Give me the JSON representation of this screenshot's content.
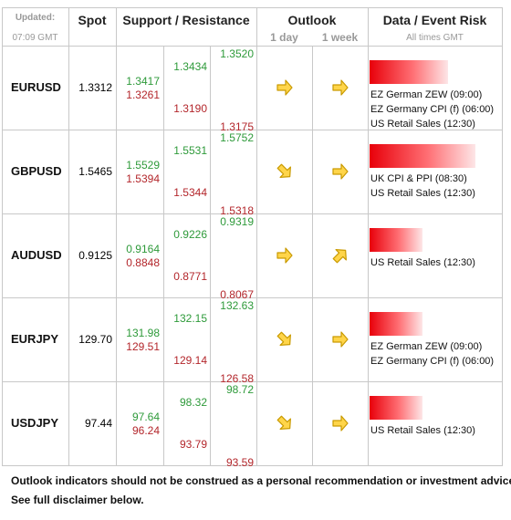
{
  "header": {
    "updated": "Updated:",
    "time": "07:09 GMT",
    "spot": "Spot",
    "support_resistance": "Support / Resistance",
    "outlook": "Outlook",
    "day": "1 day",
    "week": "1 week",
    "data": "Data / Event Risk",
    "times": "All times GMT"
  },
  "rows": [
    {
      "pair": "EURUSD",
      "spot": "1.3312",
      "levels": [
        [
          "1.3417",
          "1.3261"
        ],
        [
          "1.3434",
          "1.3190"
        ],
        [
          "1.3520",
          "1.3175"
        ]
      ],
      "events": [
        "EZ German ZEW (09:00)",
        "EZ Germany CPI (f) (06:00)",
        "US Retail Sales (12:30)"
      ]
    },
    {
      "pair": "GBPUSD",
      "spot": "1.5465",
      "levels": [
        [
          "1.5529",
          "1.5394"
        ],
        [
          "1.5531",
          "1.5344"
        ],
        [
          "1.5752",
          "1.5318"
        ]
      ],
      "events": [
        "UK CPI & PPI (08:30)",
        "US Retail Sales (12:30)"
      ]
    },
    {
      "pair": "AUDUSD",
      "spot": "0.9125",
      "levels": [
        [
          "0.9164",
          "0.8848"
        ],
        [
          "0.9226",
          "0.8771"
        ],
        [
          "0.9319",
          "0.8067"
        ]
      ],
      "events": [
        "US Retail Sales (12:30)"
      ]
    },
    {
      "pair": "EURJPY",
      "spot": "129.70",
      "levels": [
        [
          "131.98",
          "129.51"
        ],
        [
          "132.15",
          "129.14"
        ],
        [
          "132.63",
          "126.58"
        ]
      ],
      "events": [
        "EZ German ZEW (09:00)",
        "EZ Germany CPI (f) (06:00)"
      ]
    },
    {
      "pair": "USDJPY",
      "spot": "97.44",
      "levels": [
        [
          "97.64",
          "96.24"
        ],
        [
          "98.32",
          "93.79"
        ],
        [
          "98.72",
          "93.59"
        ]
      ],
      "events": [
        "US Retail Sales (12:30)"
      ]
    }
  ],
  "footer": [
    "Outlook indicators should not be construed as a personal recommendation or investment advice.",
    "See full disclaimer below."
  ]
}
